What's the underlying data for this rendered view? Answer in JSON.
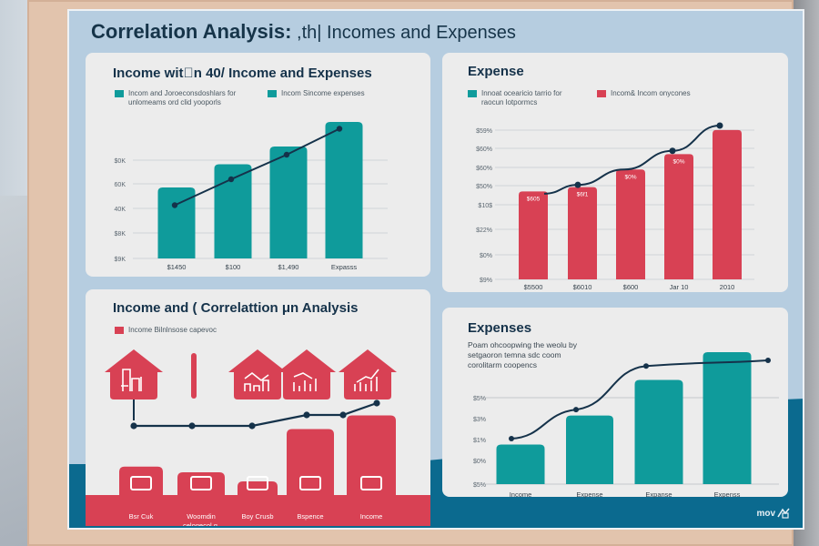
{
  "title": {
    "bold": "Correlation Analysis:",
    "rest": " ,th| Incomes and Expenses"
  },
  "colors": {
    "teal": "#0f9b9b",
    "red": "#d84154",
    "navy": "#15324a",
    "board": "#b6cde0",
    "wave": "#0b6a8f"
  },
  "panels": {
    "income": {
      "title": "Income wit\u0000n 40/ Income and Expenses",
      "legend": [
        {
          "label": "Incom and Joroeconsdoshlars for",
          "label2": "unlomeams ord clid yooporls",
          "color": "#0f9b9b"
        },
        {
          "label": "Incom Sincome expenses",
          "color": "#0f9b9b"
        }
      ]
    },
    "expense": {
      "title": "Expense",
      "legend": [
        {
          "label": "Innoat ocearicio tarrio for",
          "label2": "raocun lotpormcs",
          "color": "#0f9b9b"
        },
        {
          "label": "Incom& Incom onycones",
          "color": "#d84154"
        }
      ]
    },
    "correlation": {
      "title": "Income and ( Correlattion μn Analysis",
      "legend": [
        {
          "label": "Income Bilnlnsose capevoc",
          "color": "#d84154"
        }
      ],
      "categories": [
        "Bsr Cuk",
        "Woomdin",
        "Boy Crusb",
        "Bspence",
        "Income"
      ],
      "category_sub": [
        "",
        "celogecol g.",
        "",
        "",
        ""
      ],
      "house_icons": [
        "bills-icon",
        "divider-bar",
        "chart-down-icon",
        "chart-mixed-icon",
        "chart-up-icon"
      ],
      "bottom_icons": [
        "family-icon",
        "house-icon",
        "bar-growth-icon",
        "jars-icon",
        "coins-stack-icon"
      ]
    },
    "expenses2": {
      "title": "Expenses",
      "desc": [
        "Poam ohcoopwing the weolu by",
        "setgaoron temna sdc coom",
        "corolitarm coopencs"
      ]
    }
  },
  "logo": {
    "text": "mov"
  },
  "chart_data": [
    {
      "type": "bar",
      "title": "Income wit\u0000n 40/ Income and Expenses",
      "categories": [
        "$1450",
        "$100",
        "$1,490",
        "Expasss"
      ],
      "yticks": [
        "$9K",
        "$8K",
        "40K",
        "60K",
        "$0K"
      ],
      "ylim": [
        0,
        100
      ],
      "series": [
        {
          "name": "bars",
          "kind": "bar",
          "values": [
            52,
            69,
            82,
            100
          ]
        },
        {
          "name": "trend",
          "kind": "line",
          "values": [
            39,
            58,
            76,
            95
          ]
        }
      ],
      "grid": true,
      "legend": "top-left"
    },
    {
      "type": "bar",
      "title": "Expense",
      "categories": [
        "$5500",
        "$6010",
        "$600",
        "Jar 10",
        "2010"
      ],
      "yticks": [
        "$9%",
        "$0%",
        "$22%",
        "$10$",
        "$50%",
        "$60%",
        "$60%",
        "$59%"
      ],
      "ylim": [
        0,
        7
      ],
      "series": [
        {
          "name": "bars",
          "kind": "bar",
          "values": [
            4.0,
            4.2,
            5.0,
            5.7,
            6.8
          ],
          "labels": [
            "$605",
            "$6f1",
            "$0%",
            "$0%",
            ""
          ]
        },
        {
          "name": "trend",
          "kind": "line",
          "values": [
            3.9,
            4.3,
            5.0,
            5.85,
            7.0
          ]
        }
      ],
      "grid": true,
      "legend": "top"
    },
    {
      "type": "bar",
      "title": "Income and ( Correlattion μn Analysis",
      "categories": [
        "Bsr Cuk",
        "Woomdin",
        "Boy Crusb",
        "Bspence",
        "Income"
      ],
      "ylim": [
        0,
        100
      ],
      "series": [
        {
          "name": "bars",
          "kind": "bar",
          "values": [
            25,
            20,
            12,
            58,
            70
          ]
        },
        {
          "name": "trend",
          "kind": "line",
          "x": [
            0,
            1,
            2,
            3,
            4,
            5
          ],
          "values": [
            12,
            12,
            12,
            27,
            27,
            43
          ]
        }
      ],
      "grid": false
    },
    {
      "type": "bar",
      "title": "Expenses",
      "categories": [
        "Income",
        "Expense",
        "Expanse",
        "Expenss"
      ],
      "yticks": [
        "$5%",
        "$0%",
        "$1%",
        "$3%",
        "$5%"
      ],
      "ylim": [
        0,
        100
      ],
      "series": [
        {
          "name": "bars",
          "kind": "bar",
          "values": [
            30,
            52,
            79,
            100
          ]
        },
        {
          "name": "trend",
          "kind": "line",
          "values": [
            31,
            53,
            86,
            115
          ]
        }
      ],
      "grid": true
    }
  ]
}
